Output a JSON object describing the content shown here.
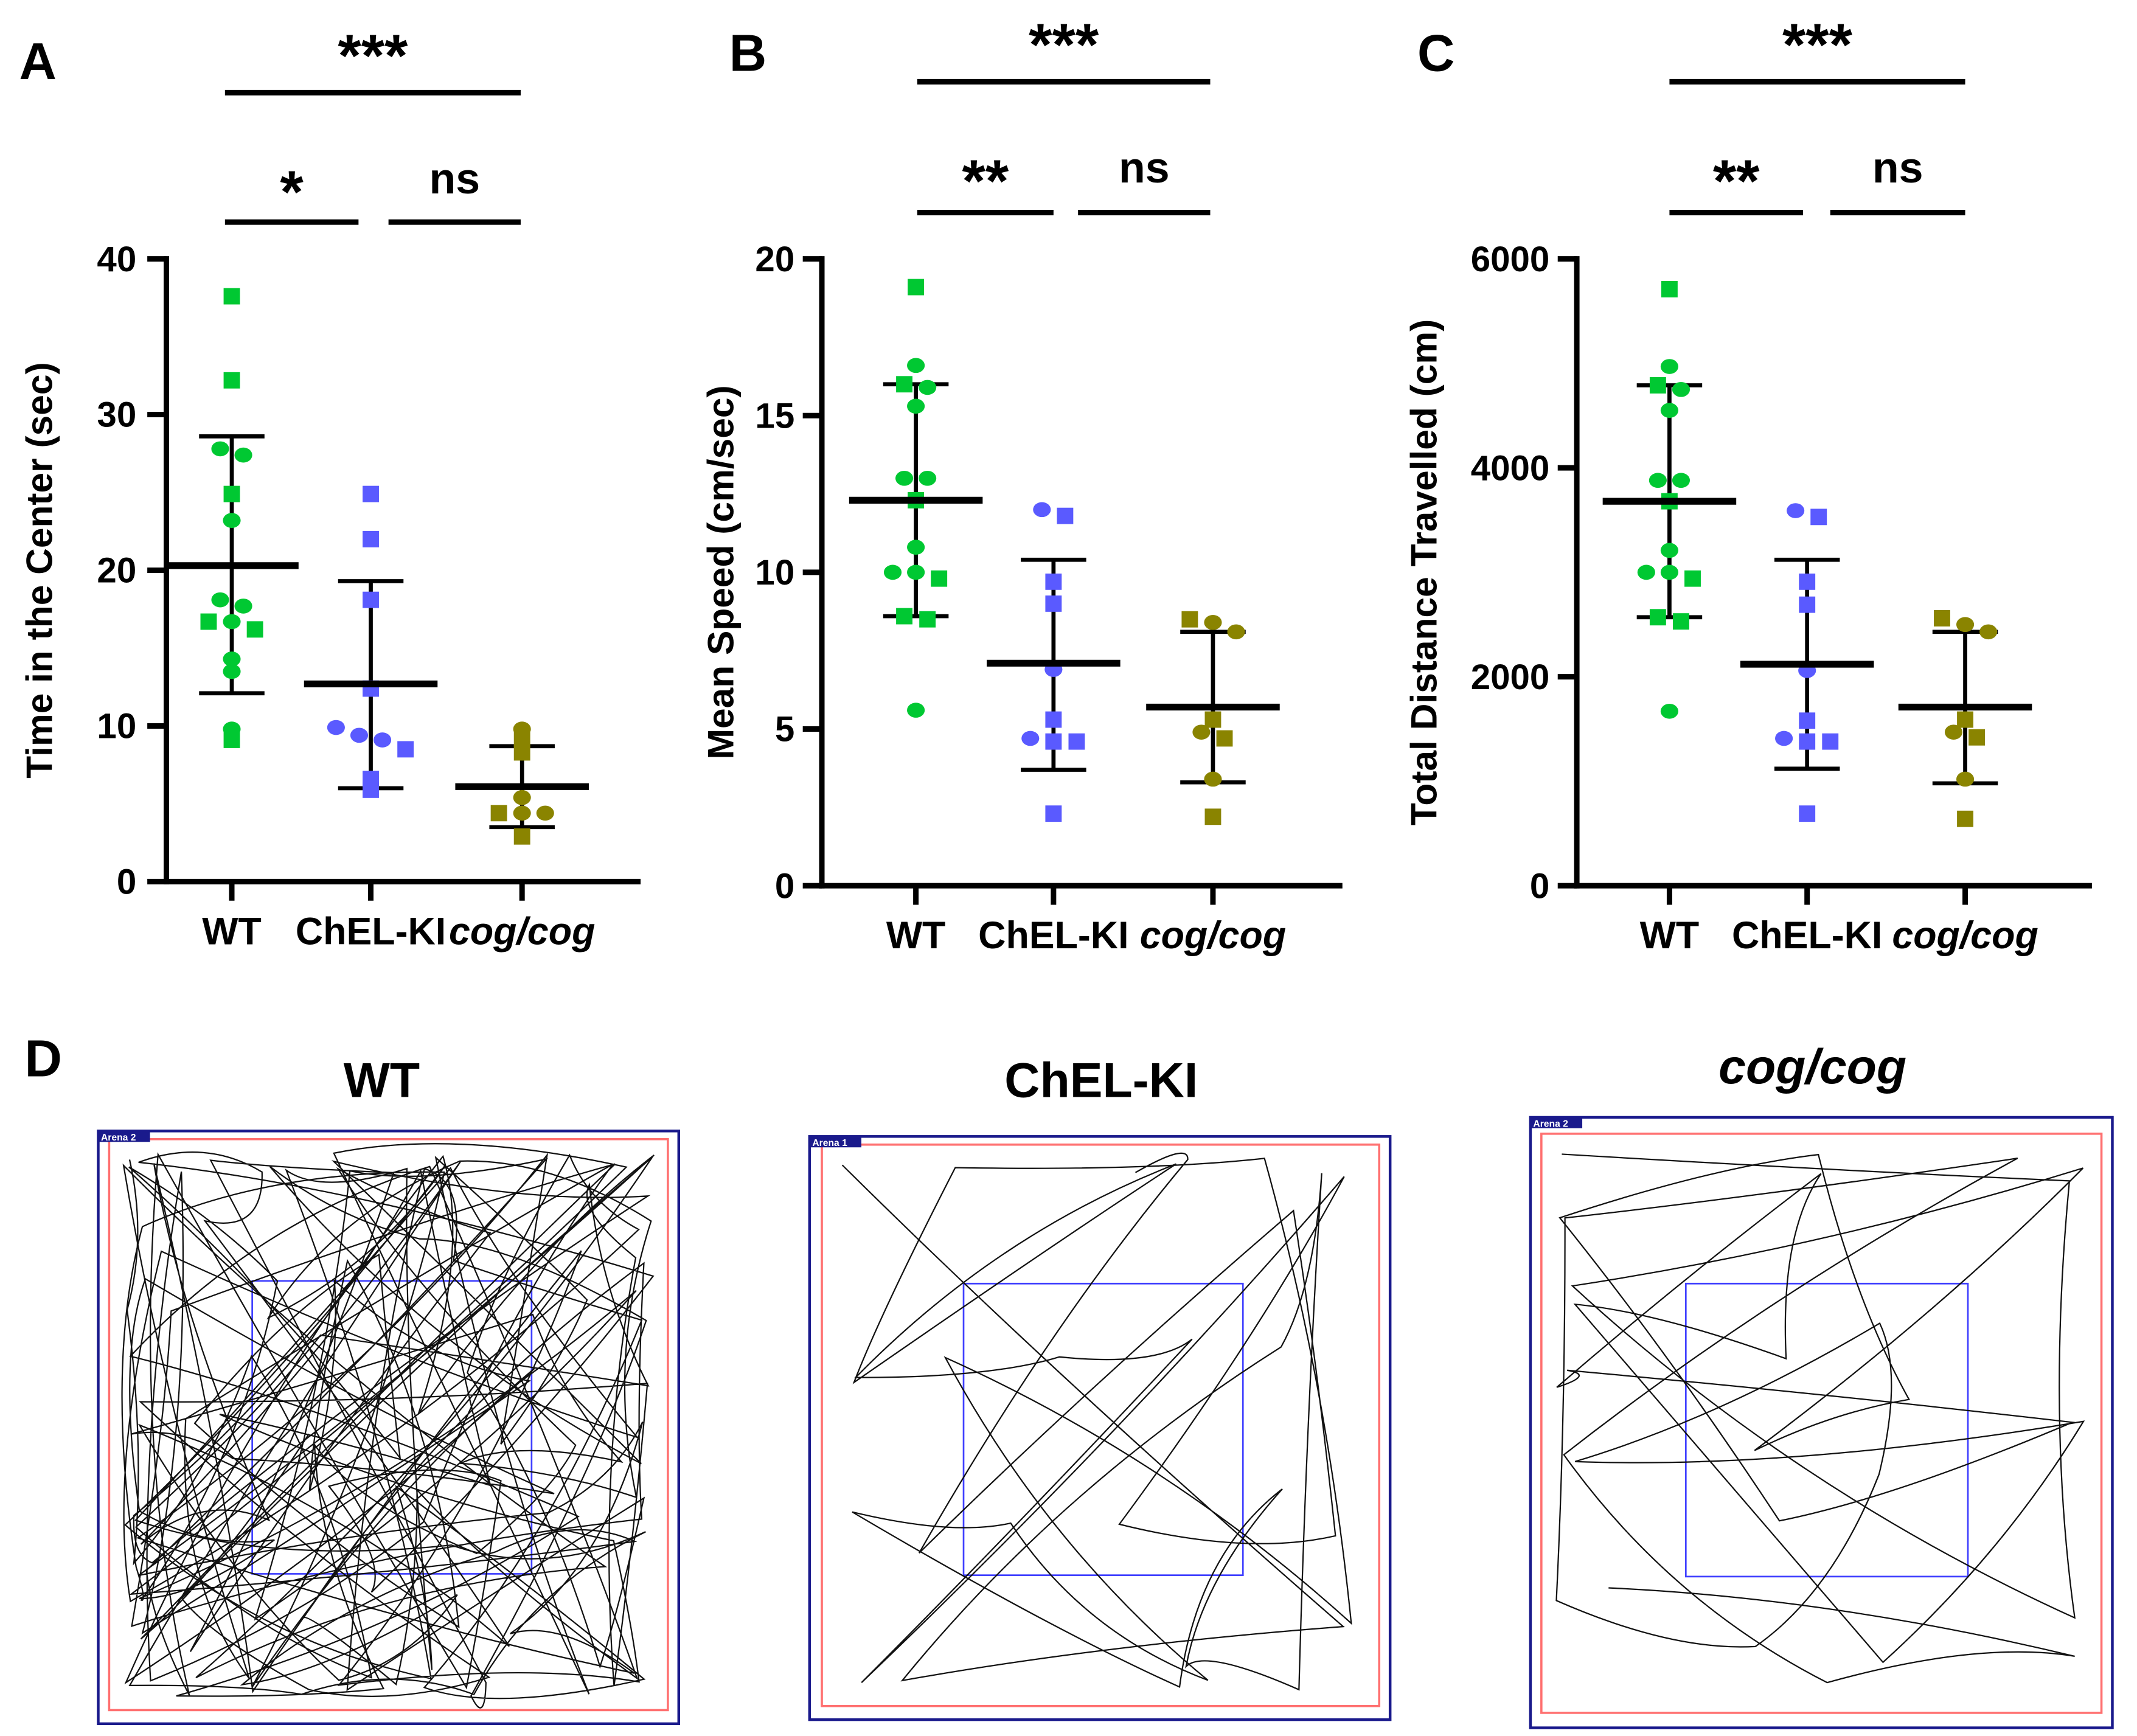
{
  "colors": {
    "WT": "#00c832",
    "ChEL-KI": "#5a5aff",
    "cog/cog": "#8a8400",
    "arena_outer": "#1a1a8c",
    "arena_wall": "#ff7070",
    "center_zone": "#4040ff"
  },
  "chart_data": [
    {
      "panel": "A",
      "type": "scatter",
      "ylabel": "Time in the Center (sec)",
      "ylim": [
        0,
        40
      ],
      "yticks": [
        0,
        10,
        20,
        30,
        40
      ],
      "categories": [
        "WT",
        "ChEL-KI",
        "cog/cog"
      ],
      "groups": [
        {
          "name": "WT",
          "mean": 20.3,
          "sd_upper": 28.6,
          "sd_lower": 12.1,
          "points": [
            {
              "v": 37.6,
              "s": "square"
            },
            {
              "v": 32.2,
              "s": "square"
            },
            {
              "v": 27.8,
              "s": "circle"
            },
            {
              "v": 27.4,
              "s": "circle"
            },
            {
              "v": 24.9,
              "s": "square"
            },
            {
              "v": 23.2,
              "s": "circle"
            },
            {
              "v": 18.1,
              "s": "circle"
            },
            {
              "v": 17.7,
              "s": "circle"
            },
            {
              "v": 16.7,
              "s": "square"
            },
            {
              "v": 16.7,
              "s": "circle"
            },
            {
              "v": 16.2,
              "s": "square"
            },
            {
              "v": 14.3,
              "s": "circle"
            },
            {
              "v": 13.5,
              "s": "circle"
            },
            {
              "v": 9.8,
              "s": "circle"
            },
            {
              "v": 9.1,
              "s": "square"
            }
          ]
        },
        {
          "name": "ChEL-KI",
          "mean": 12.7,
          "sd_upper": 19.3,
          "sd_lower": 6.0,
          "points": [
            {
              "v": 24.9,
              "s": "square"
            },
            {
              "v": 22.0,
              "s": "square"
            },
            {
              "v": 18.1,
              "s": "square"
            },
            {
              "v": 12.4,
              "s": "square"
            },
            {
              "v": 9.9,
              "s": "circle"
            },
            {
              "v": 9.4,
              "s": "circle"
            },
            {
              "v": 9.1,
              "s": "circle"
            },
            {
              "v": 8.5,
              "s": "square"
            },
            {
              "v": 6.6,
              "s": "square"
            },
            {
              "v": 5.9,
              "s": "square"
            }
          ]
        },
        {
          "name": "cog/cog",
          "mean": 6.1,
          "sd_upper": 8.7,
          "sd_lower": 3.5,
          "points": [
            {
              "v": 9.8,
              "s": "circle"
            },
            {
              "v": 9.1,
              "s": "square"
            },
            {
              "v": 8.3,
              "s": "square"
            },
            {
              "v": 5.4,
              "s": "circle"
            },
            {
              "v": 4.4,
              "s": "square"
            },
            {
              "v": 4.4,
              "s": "circle"
            },
            {
              "v": 4.4,
              "s": "circle"
            },
            {
              "v": 2.9,
              "s": "square"
            }
          ]
        }
      ],
      "significance": [
        {
          "from": 0,
          "to": 2,
          "label": "***"
        },
        {
          "from": 0,
          "to": 1,
          "label": "*"
        },
        {
          "from": 1,
          "to": 2,
          "label": "ns"
        }
      ]
    },
    {
      "panel": "B",
      "type": "scatter",
      "ylabel": "Mean Speed (cm/sec)",
      "ylim": [
        0,
        20
      ],
      "yticks": [
        0,
        5,
        10,
        15,
        20
      ],
      "categories": [
        "WT",
        "ChEL-KI",
        "cog/cog"
      ],
      "groups": [
        {
          "name": "WT",
          "mean": 12.3,
          "sd_upper": 16.0,
          "sd_lower": 8.6,
          "points": [
            {
              "v": 19.1,
              "s": "square"
            },
            {
              "v": 16.6,
              "s": "circle"
            },
            {
              "v": 16.0,
              "s": "square"
            },
            {
              "v": 15.9,
              "s": "circle"
            },
            {
              "v": 15.3,
              "s": "circle"
            },
            {
              "v": 13.0,
              "s": "circle"
            },
            {
              "v": 13.0,
              "s": "circle"
            },
            {
              "v": 12.3,
              "s": "square"
            },
            {
              "v": 10.8,
              "s": "circle"
            },
            {
              "v": 10.0,
              "s": "circle"
            },
            {
              "v": 10.0,
              "s": "circle"
            },
            {
              "v": 9.8,
              "s": "square"
            },
            {
              "v": 8.6,
              "s": "square"
            },
            {
              "v": 8.5,
              "s": "square"
            },
            {
              "v": 5.6,
              "s": "circle"
            }
          ]
        },
        {
          "name": "ChEL-KI",
          "mean": 7.1,
          "sd_upper": 10.4,
          "sd_lower": 3.7,
          "points": [
            {
              "v": 12.0,
              "s": "circle"
            },
            {
              "v": 11.8,
              "s": "square"
            },
            {
              "v": 9.7,
              "s": "square"
            },
            {
              "v": 9.0,
              "s": "square"
            },
            {
              "v": 6.9,
              "s": "circle"
            },
            {
              "v": 5.3,
              "s": "square"
            },
            {
              "v": 4.7,
              "s": "circle"
            },
            {
              "v": 4.6,
              "s": "square"
            },
            {
              "v": 4.6,
              "s": "square"
            },
            {
              "v": 2.3,
              "s": "square"
            }
          ]
        },
        {
          "name": "cog/cog",
          "mean": 5.7,
          "sd_upper": 8.1,
          "sd_lower": 3.3,
          "points": [
            {
              "v": 8.5,
              "s": "square"
            },
            {
              "v": 8.4,
              "s": "circle"
            },
            {
              "v": 8.1,
              "s": "circle"
            },
            {
              "v": 5.3,
              "s": "square"
            },
            {
              "v": 4.9,
              "s": "circle"
            },
            {
              "v": 4.7,
              "s": "square"
            },
            {
              "v": 3.4,
              "s": "circle"
            },
            {
              "v": 2.2,
              "s": "square"
            }
          ]
        }
      ],
      "significance": [
        {
          "from": 0,
          "to": 2,
          "label": "***"
        },
        {
          "from": 0,
          "to": 1,
          "label": "**"
        },
        {
          "from": 1,
          "to": 2,
          "label": "ns"
        }
      ]
    },
    {
      "panel": "C",
      "type": "scatter",
      "ylabel": "Total Distance Travelled  (cm)",
      "ylim": [
        0,
        6000
      ],
      "yticks": [
        0,
        2000,
        4000,
        6000
      ],
      "categories": [
        "WT",
        "ChEL-KI",
        "cog/cog"
      ],
      "groups": [
        {
          "name": "WT",
          "mean": 3680,
          "sd_upper": 4790,
          "sd_lower": 2570,
          "points": [
            {
              "v": 5710,
              "s": "square"
            },
            {
              "v": 4970,
              "s": "circle"
            },
            {
              "v": 4790,
              "s": "square"
            },
            {
              "v": 4750,
              "s": "circle"
            },
            {
              "v": 4550,
              "s": "circle"
            },
            {
              "v": 3880,
              "s": "circle"
            },
            {
              "v": 3880,
              "s": "circle"
            },
            {
              "v": 3680,
              "s": "square"
            },
            {
              "v": 3210,
              "s": "circle"
            },
            {
              "v": 3000,
              "s": "circle"
            },
            {
              "v": 3000,
              "s": "circle"
            },
            {
              "v": 2940,
              "s": "square"
            },
            {
              "v": 2570,
              "s": "square"
            },
            {
              "v": 2530,
              "s": "square"
            },
            {
              "v": 1670,
              "s": "circle"
            }
          ]
        },
        {
          "name": "ChEL-KI",
          "mean": 2120,
          "sd_upper": 3120,
          "sd_lower": 1120,
          "points": [
            {
              "v": 3590,
              "s": "circle"
            },
            {
              "v": 3530,
              "s": "square"
            },
            {
              "v": 2910,
              "s": "square"
            },
            {
              "v": 2690,
              "s": "square"
            },
            {
              "v": 2060,
              "s": "circle"
            },
            {
              "v": 1580,
              "s": "square"
            },
            {
              "v": 1410,
              "s": "circle"
            },
            {
              "v": 1380,
              "s": "square"
            },
            {
              "v": 1380,
              "s": "square"
            },
            {
              "v": 690,
              "s": "square"
            }
          ]
        },
        {
          "name": "cog/cog",
          "mean": 1710,
          "sd_upper": 2430,
          "sd_lower": 980,
          "points": [
            {
              "v": 2560,
              "s": "square"
            },
            {
              "v": 2500,
              "s": "circle"
            },
            {
              "v": 2430,
              "s": "circle"
            },
            {
              "v": 1590,
              "s": "square"
            },
            {
              "v": 1470,
              "s": "circle"
            },
            {
              "v": 1420,
              "s": "square"
            },
            {
              "v": 1020,
              "s": "circle"
            },
            {
              "v": 640,
              "s": "square"
            }
          ]
        }
      ],
      "significance": [
        {
          "from": 0,
          "to": 2,
          "label": "***"
        },
        {
          "from": 0,
          "to": 1,
          "label": "**"
        },
        {
          "from": 1,
          "to": 2,
          "label": "ns"
        }
      ]
    }
  ],
  "panel_d": {
    "label": "D",
    "tracks": [
      {
        "title": "WT",
        "arena_label": "Arena 2",
        "activity": "high"
      },
      {
        "title": "ChEL-KI",
        "arena_label": "Arena 1",
        "activity": "low"
      },
      {
        "title": "cog/cog",
        "arena_label": "Arena 2",
        "activity": "low"
      }
    ]
  }
}
